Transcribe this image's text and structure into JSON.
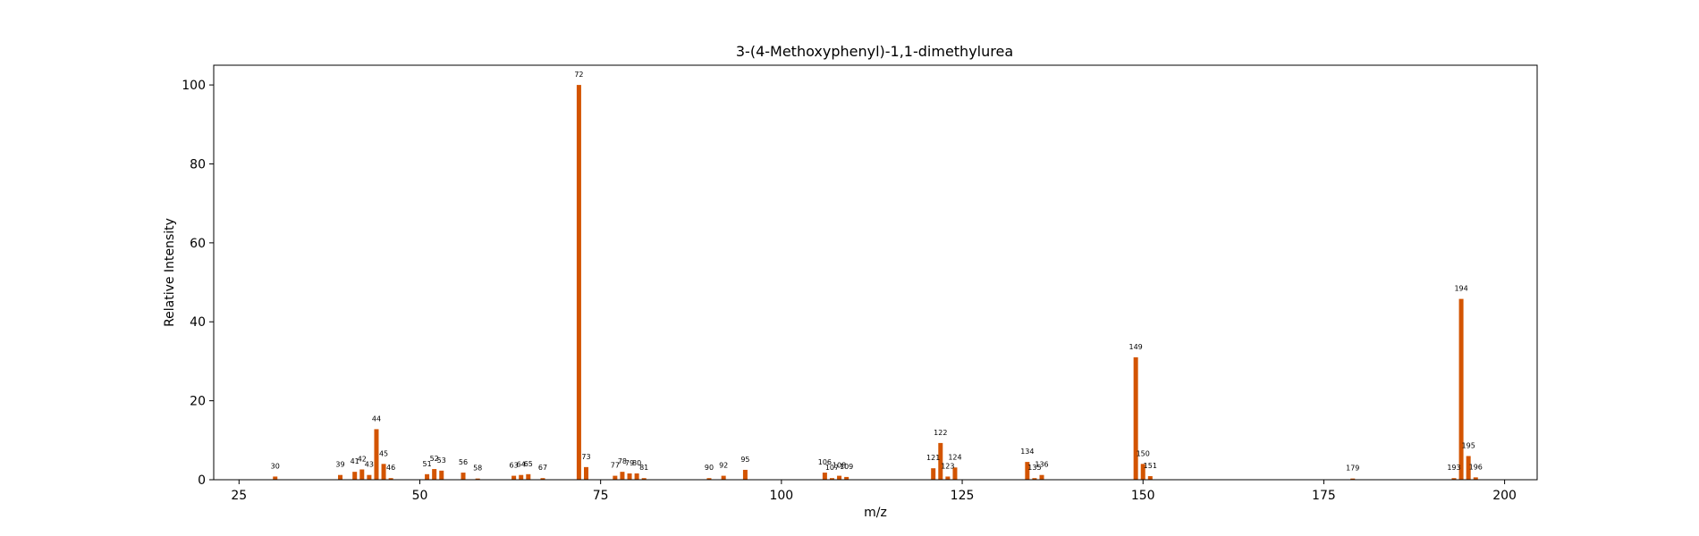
{
  "chart_data": {
    "type": "bar",
    "title": "3-(4-Methoxyphenyl)-1,1-dimethylurea",
    "xlabel": "m/z",
    "ylabel": "Relative Intensity",
    "xlim": [
      21.5,
      204.5
    ],
    "ylim": [
      0,
      105
    ],
    "xticks": [
      25,
      50,
      75,
      100,
      125,
      150,
      175,
      200
    ],
    "yticks": [
      0,
      20,
      40,
      60,
      80,
      100
    ],
    "bar_color": "#d35400",
    "grid": false,
    "x": [
      30,
      39,
      41,
      42,
      43,
      44,
      45,
      46,
      51,
      52,
      53,
      56,
      58,
      63,
      64,
      65,
      67,
      72,
      73,
      77,
      78,
      79,
      80,
      81,
      90,
      92,
      95,
      106,
      107,
      108,
      109,
      121,
      122,
      123,
      124,
      134,
      135,
      136,
      149,
      150,
      151,
      179,
      193,
      194,
      195,
      196
    ],
    "values": [
      0.8,
      1.2,
      2.0,
      2.6,
      1.2,
      12.8,
      4.0,
      0.4,
      1.4,
      2.7,
      2.3,
      1.8,
      0.3,
      1.0,
      1.2,
      1.4,
      0.4,
      100,
      3.2,
      1.0,
      2.0,
      1.6,
      1.6,
      0.4,
      0.4,
      1.0,
      2.5,
      1.8,
      0.4,
      1.0,
      0.7,
      2.9,
      9.3,
      0.8,
      3.1,
      4.5,
      0.4,
      1.2,
      31.0,
      4.0,
      0.9,
      0.3,
      0.4,
      45.8,
      6.0,
      0.6
    ],
    "labels": [
      "30",
      "39",
      "41",
      "42",
      "43",
      "44",
      "45",
      "46",
      "51",
      "52",
      "53",
      "56",
      "58",
      "63",
      "64",
      "65",
      "67",
      "72",
      "73",
      "77",
      "78",
      "79",
      "80",
      "81",
      "90",
      "92",
      "95",
      "106",
      "107",
      "108",
      "109",
      "121",
      "122",
      "123",
      "124",
      "134",
      "135",
      "136",
      "149",
      "150",
      "151",
      "179",
      "193",
      "194",
      "195",
      "196"
    ]
  }
}
